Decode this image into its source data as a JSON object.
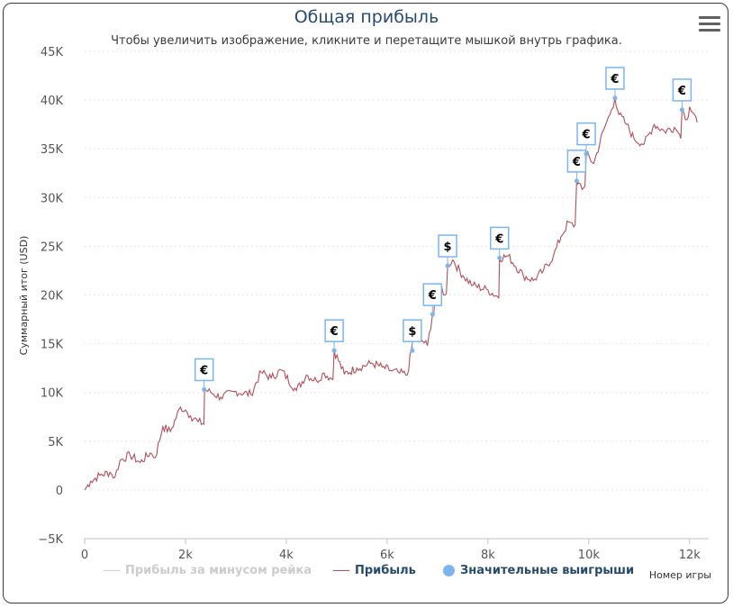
{
  "chart": {
    "title": "Общая прибыль",
    "subtitle": "Чтобы увеличить изображение, кликните и перетащите мышкой внутрь графика.",
    "menu_icon": "hamburger-menu-icon",
    "xlabel": "Номер игры",
    "ylabel": "Суммарный итог (USD)"
  },
  "legend": [
    {
      "label": "Прибыль за минусом рейка",
      "color": "#cccccc",
      "active": false,
      "symbol": "line"
    },
    {
      "label": "Прибыль",
      "color": "#b0505a",
      "active": true,
      "symbol": "line"
    },
    {
      "label": "Значительные выигрыши",
      "color": "#7cb5ec",
      "active": true,
      "symbol": "dot"
    }
  ],
  "chart_data": {
    "type": "line",
    "title": "Общая прибыль",
    "xlabel": "Номер игры",
    "ylabel": "Суммарный итог (USD)",
    "xlim": [
      0,
      12200
    ],
    "ylim": [
      -5000,
      45000
    ],
    "x_ticks": [
      0,
      2000,
      4000,
      6000,
      8000,
      10000,
      12000
    ],
    "x_tick_labels": [
      "0",
      "2k",
      "4k",
      "6k",
      "8k",
      "10k",
      "12k"
    ],
    "y_ticks": [
      -5000,
      0,
      5000,
      10000,
      15000,
      20000,
      25000,
      30000,
      35000,
      40000,
      45000
    ],
    "y_tick_labels": [
      "−5K",
      "0",
      "5K",
      "10K",
      "15K",
      "20K",
      "25K",
      "30K",
      "35K",
      "40K",
      "45K"
    ],
    "grid": true,
    "series": [
      {
        "name": "Прибыль",
        "color": "#b0505a",
        "x": [
          0,
          120,
          300,
          500,
          600,
          700,
          900,
          1100,
          1300,
          1400,
          1550,
          1700,
          1900,
          2000,
          2100,
          2250,
          2350,
          2380,
          2500,
          2700,
          3000,
          3300,
          3500,
          3700,
          3900,
          4200,
          4400,
          4600,
          4750,
          4900,
          4950,
          5150,
          5400,
          5700,
          5900,
          6100,
          6250,
          6400,
          6480,
          6520,
          6700,
          6800,
          6900,
          6950,
          7050,
          7150,
          7200,
          7300,
          7500,
          7700,
          8000,
          8200,
          8230,
          8400,
          8700,
          8900,
          9100,
          9300,
          9450,
          9600,
          9700,
          9760,
          9800,
          9900,
          9950,
          10100,
          10300,
          10450,
          10520,
          10600,
          10750,
          10900,
          11100,
          11300,
          11500,
          11700,
          11800,
          11850,
          11950,
          12000,
          12100,
          12150
        ],
        "values": [
          0,
          900,
          1500,
          1800,
          1300,
          3000,
          3600,
          2800,
          3800,
          3300,
          6500,
          6000,
          8500,
          8200,
          7600,
          7000,
          6800,
          10300,
          10000,
          9500,
          10100,
          9800,
          12100,
          11500,
          12300,
          10200,
          11800,
          11200,
          12000,
          11400,
          14300,
          11900,
          12500,
          13000,
          12600,
          12200,
          12000,
          11800,
          14300,
          16000,
          15300,
          14800,
          18000,
          20200,
          21000,
          20000,
          23000,
          23600,
          22000,
          21000,
          20500,
          19800,
          23800,
          24000,
          22000,
          21500,
          22500,
          24000,
          26000,
          27500,
          27000,
          31700,
          31500,
          31000,
          34500,
          33500,
          37000,
          39000,
          40200,
          38500,
          37500,
          36000,
          35500,
          37500,
          36800,
          37200,
          36500,
          39000,
          38000,
          39300,
          38500,
          37700
        ]
      }
    ],
    "big_wins": [
      {
        "x": 2370,
        "y": 10300,
        "label": "€"
      },
      {
        "x": 4950,
        "y": 14300,
        "label": "€"
      },
      {
        "x": 6500,
        "y": 14300,
        "label": "$"
      },
      {
        "x": 6900,
        "y": 18000,
        "label": "€"
      },
      {
        "x": 7200,
        "y": 23000,
        "label": "$"
      },
      {
        "x": 8230,
        "y": 23800,
        "label": "€"
      },
      {
        "x": 9760,
        "y": 31700,
        "label": "€"
      },
      {
        "x": 9950,
        "y": 34500,
        "label": "€"
      },
      {
        "x": 10520,
        "y": 40200,
        "label": "€"
      },
      {
        "x": 11850,
        "y": 39000,
        "label": "€"
      }
    ]
  }
}
